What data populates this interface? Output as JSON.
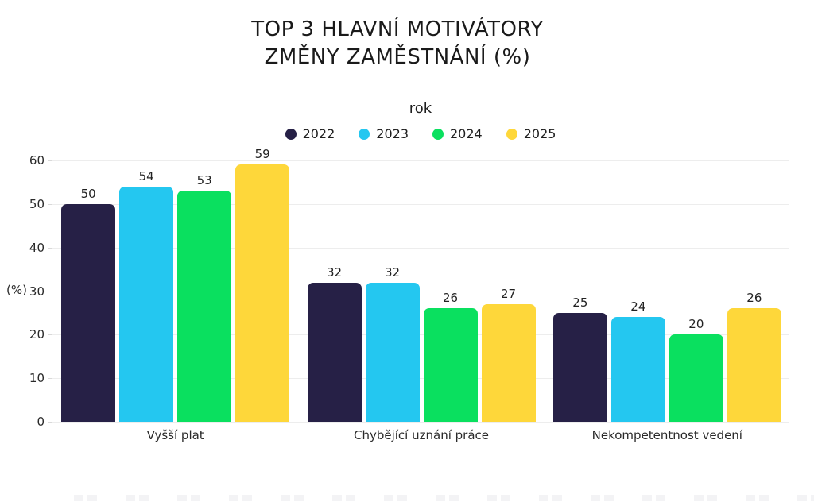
{
  "title": {
    "line1": "TOP 3 HLAVNÍ MOTIVÁTORY",
    "line2": "ZMĚNY ZAMĚSTNÁNÍ (%)"
  },
  "chart_data": {
    "type": "bar",
    "title": "TOP 3 HLAVNÍ MOTIVÁTORY ZMĚNY ZAMĚSTNÁNÍ (%)",
    "legend_title": "rok",
    "legend_position": "top-center",
    "categories": [
      "Vyšší plat",
      "Chybějící uznání práce",
      "Nekompetentnost vedení"
    ],
    "series": [
      {
        "name": "2022",
        "color": "#262046",
        "values": [
          50,
          32,
          25
        ]
      },
      {
        "name": "2023",
        "color": "#24c7f0",
        "values": [
          54,
          32,
          24
        ]
      },
      {
        "name": "2024",
        "color": "#0ae05f",
        "values": [
          53,
          26,
          20
        ]
      },
      {
        "name": "2025",
        "color": "#fed73a",
        "values": [
          59,
          27,
          26
        ]
      }
    ],
    "xlabel": "",
    "ylabel": "(%)",
    "ylim": [
      0,
      60
    ],
    "yticks": [
      0,
      10,
      20,
      30,
      40,
      50,
      60
    ],
    "grid": true,
    "grid_color": "#ededed",
    "text_color": "#1f1f1f",
    "background_color": "#ffffff"
  }
}
